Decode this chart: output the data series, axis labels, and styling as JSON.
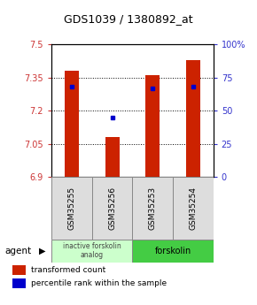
{
  "title": "GDS1039 / 1380892_at",
  "samples": [
    "GSM35255",
    "GSM35256",
    "GSM35253",
    "GSM35254"
  ],
  "bar_values": [
    7.38,
    7.08,
    7.36,
    7.43
  ],
  "bar_bottom": 6.9,
  "percentile_values": [
    68,
    45,
    67,
    68
  ],
  "y_min": 6.9,
  "y_max": 7.5,
  "y_ticks": [
    6.9,
    7.05,
    7.2,
    7.35,
    7.5
  ],
  "right_y_ticks": [
    0,
    25,
    50,
    75,
    100
  ],
  "bar_color": "#cc2200",
  "percentile_color": "#0000cc",
  "agent_groups": [
    {
      "label": "inactive forskolin\nanalog",
      "span": [
        0,
        2
      ],
      "color": "#ccffcc"
    },
    {
      "label": "forskolin",
      "span": [
        2,
        4
      ],
      "color": "#44cc44"
    }
  ],
  "legend_items": [
    {
      "color": "#cc2200",
      "label": "transformed count"
    },
    {
      "color": "#0000cc",
      "label": "percentile rank within the sample"
    }
  ],
  "background_color": "#ffffff",
  "bar_width": 0.35,
  "title_fontsize": 9,
  "tick_fontsize": 7
}
